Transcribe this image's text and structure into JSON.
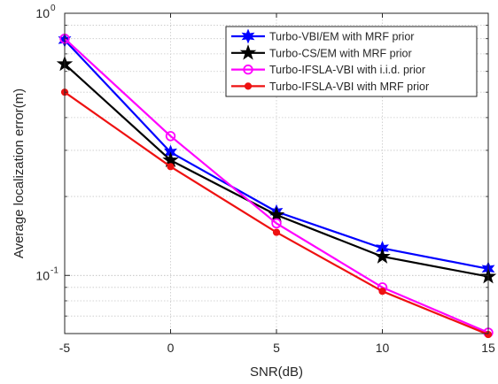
{
  "chart_data": {
    "type": "line",
    "title": "",
    "xlabel": "SNR(dB)",
    "ylabel": "Average localization error(m)",
    "x": [
      -5,
      0,
      5,
      10,
      15
    ],
    "xlim": [
      -5,
      15
    ],
    "ylim": [
      0.06,
      1
    ],
    "yscale": "log",
    "xticks": [
      -5,
      0,
      5,
      10,
      15
    ],
    "xtick_labels": [
      "-5",
      "0",
      "5",
      "10",
      "15"
    ],
    "yticks_major": [
      {
        "value": 0.1,
        "base": "10",
        "exp": "-1"
      },
      {
        "value": 1,
        "base": "10",
        "exp": "0"
      }
    ],
    "grid": true,
    "legend_position": "top-right",
    "series": [
      {
        "name": "Turbo-VBI/EM with MRF prior",
        "color": "#0000ff",
        "marker": "hexagram",
        "values": [
          0.79,
          0.295,
          0.175,
          0.127,
          0.106
        ]
      },
      {
        "name": "Turbo-CS/EM with MRF prior",
        "color": "#000000",
        "marker": "pentagram",
        "values": [
          0.64,
          0.275,
          0.17,
          0.118,
          0.099
        ]
      },
      {
        "name": "Turbo-IFSLA-VBI with i.i.d. prior",
        "color": "#ff00ff",
        "marker": "circle-open",
        "values": [
          0.8,
          0.34,
          0.158,
          0.09,
          0.0605
        ]
      },
      {
        "name": "Turbo-IFSLA-VBI with MRF prior",
        "color": "#ee1111",
        "marker": "circle-filled",
        "values": [
          0.5,
          0.26,
          0.146,
          0.087,
          0.0595
        ]
      }
    ]
  }
}
